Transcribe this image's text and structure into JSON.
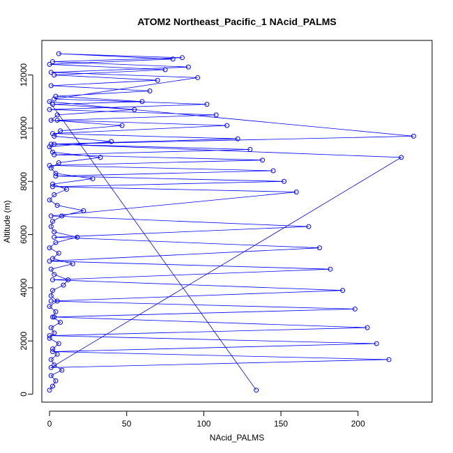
{
  "chart_data": {
    "type": "scatter",
    "title": "ATOM2 Northeast_Pacific_1 NAcid_PALMS",
    "xlabel": "NAcid_PALMS",
    "ylabel": "Altitude (m)",
    "xlim": [
      -5,
      248
    ],
    "ylim": [
      -300,
      13300
    ],
    "x_ticks": [
      0,
      50,
      100,
      150,
      200
    ],
    "y_ticks": [
      0,
      2000,
      4000,
      6000,
      8000,
      10000,
      12000
    ],
    "grid": false,
    "legend": "none",
    "marker": "open-circle",
    "series_color": "#0000ff",
    "series": [
      {
        "name": "",
        "x": [
          0,
          2,
          4,
          1,
          8,
          3,
          1,
          5,
          2,
          6,
          0,
          3,
          1,
          7,
          2,
          4,
          0,
          5,
          1,
          2,
          9,
          12,
          3,
          1,
          15,
          2,
          6,
          0,
          4,
          18,
          3,
          1,
          2,
          8,
          22,
          5,
          0,
          3,
          11,
          2,
          28,
          4,
          1,
          6,
          33,
          2,
          0,
          40,
          3,
          7,
          47,
          1,
          5,
          55,
          2,
          60,
          4,
          65,
          1,
          70,
          3,
          75,
          0,
          80,
          6,
          86,
          2,
          90,
          1,
          96,
          3,
          102,
          0,
          108,
          5,
          115,
          2,
          122,
          1,
          130,
          3,
          138,
          0,
          145,
          4,
          152,
          2,
          160,
          1,
          168,
          3,
          175,
          0,
          182,
          2,
          190,
          1,
          198,
          3,
          206,
          0,
          212,
          2,
          220,
          1,
          228,
          3,
          236,
          0,
          134
        ],
        "y": [
          150,
          300,
          500,
          700,
          900,
          1100,
          1300,
          1500,
          1700,
          1900,
          2100,
          2300,
          2500,
          2700,
          2900,
          3100,
          3300,
          3500,
          3700,
          3900,
          4100,
          4300,
          4500,
          4700,
          4900,
          5100,
          5300,
          5500,
          5700,
          5900,
          6100,
          6300,
          6500,
          6700,
          6900,
          7100,
          7300,
          7500,
          7700,
          7900,
          8100,
          8300,
          8500,
          8700,
          8900,
          9100,
          9300,
          9500,
          9700,
          9900,
          10100,
          10300,
          10500,
          10700,
          10900,
          11000,
          11200,
          11400,
          11600,
          11800,
          12000,
          12200,
          12400,
          12600,
          12800,
          12650,
          12500,
          12300,
          12100,
          11900,
          11100,
          10900,
          10700,
          10500,
          10300,
          10100,
          9800,
          9600,
          9400,
          9200,
          9000,
          8800,
          8600,
          8400,
          8200,
          8000,
          7800,
          7600,
          6700,
          6300,
          5900,
          5500,
          5000,
          4700,
          4300,
          3900,
          3500,
          3200,
          2900,
          2500,
          2200,
          1900,
          1600,
          1300,
          1000,
          8900,
          9400,
          9700,
          11000,
          150
        ]
      }
    ]
  }
}
